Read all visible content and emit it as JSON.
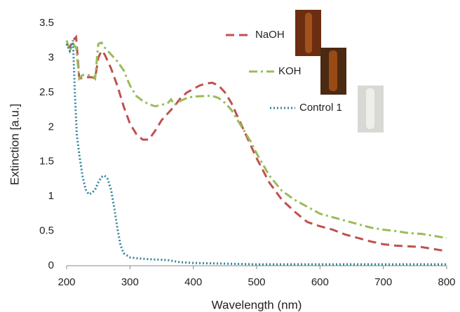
{
  "chart_data": {
    "type": "line",
    "x_label": "Wavelength (nm)",
    "y_label": "Extinction [a.u.]",
    "xlim": [
      200,
      800
    ],
    "xticks": [
      200,
      300,
      400,
      500,
      600,
      700,
      800
    ],
    "ylim": [
      0,
      3.5
    ],
    "yticks": [
      0,
      0.5,
      1,
      1.5,
      2,
      2.5,
      3,
      3.5
    ],
    "series": [
      {
        "name": "NaOH",
        "color": "#c0504d",
        "dash": "dashed",
        "x": [
          200,
          205,
          210,
          215,
          220,
          230,
          240,
          245,
          250,
          255,
          260,
          270,
          280,
          290,
          300,
          310,
          320,
          330,
          340,
          350,
          360,
          370,
          380,
          390,
          400,
          410,
          420,
          430,
          440,
          450,
          460,
          470,
          480,
          490,
          500,
          520,
          540,
          560,
          580,
          600,
          620,
          640,
          660,
          680,
          700,
          720,
          740,
          760,
          780,
          800
        ],
        "values": [
          3.2,
          3.15,
          3.25,
          3.3,
          2.7,
          2.72,
          2.72,
          2.7,
          3.0,
          3.1,
          3.05,
          2.85,
          2.6,
          2.3,
          2.05,
          1.9,
          1.82,
          1.82,
          1.95,
          2.1,
          2.2,
          2.3,
          2.42,
          2.5,
          2.55,
          2.6,
          2.63,
          2.64,
          2.6,
          2.5,
          2.35,
          2.15,
          1.95,
          1.75,
          1.55,
          1.2,
          0.95,
          0.78,
          0.63,
          0.57,
          0.52,
          0.45,
          0.4,
          0.35,
          0.31,
          0.29,
          0.28,
          0.27,
          0.24,
          0.21
        ]
      },
      {
        "name": "KOH",
        "color": "#9bbb59",
        "dash": "dashdot",
        "x": [
          200,
          205,
          210,
          215,
          220,
          225,
          230,
          240,
          245,
          250,
          255,
          260,
          270,
          280,
          290,
          300,
          310,
          320,
          330,
          340,
          350,
          360,
          365,
          370,
          380,
          390,
          400,
          420,
          430,
          440,
          450,
          460,
          470,
          480,
          490,
          500,
          520,
          540,
          560,
          580,
          600,
          620,
          640,
          660,
          680,
          700,
          720,
          740,
          760,
          780,
          800
        ],
        "values": [
          3.25,
          3.1,
          3.2,
          3.15,
          2.7,
          2.75,
          2.75,
          2.75,
          2.7,
          3.2,
          3.22,
          3.15,
          3.05,
          2.95,
          2.82,
          2.6,
          2.45,
          2.38,
          2.33,
          2.3,
          2.32,
          2.35,
          2.4,
          2.32,
          2.38,
          2.42,
          2.44,
          2.45,
          2.45,
          2.42,
          2.35,
          2.25,
          2.1,
          1.95,
          1.8,
          1.62,
          1.3,
          1.08,
          0.95,
          0.85,
          0.75,
          0.7,
          0.65,
          0.6,
          0.55,
          0.52,
          0.5,
          0.47,
          0.46,
          0.43,
          0.4
        ]
      },
      {
        "name": "Control 1",
        "color": "#31859c",
        "dash": "dotted",
        "x": [
          200,
          205,
          210,
          213,
          216,
          220,
          225,
          230,
          235,
          240,
          245,
          250,
          255,
          260,
          265,
          270,
          275,
          280,
          285,
          290,
          300,
          320,
          340,
          360,
          380,
          400,
          450,
          500,
          600,
          700,
          800
        ],
        "values": [
          3.2,
          3.1,
          3.25,
          2.5,
          1.9,
          1.6,
          1.3,
          1.1,
          1.03,
          1.05,
          1.1,
          1.2,
          1.28,
          1.3,
          1.25,
          1.1,
          0.85,
          0.55,
          0.3,
          0.18,
          0.12,
          0.1,
          0.09,
          0.08,
          0.05,
          0.04,
          0.03,
          0.02,
          0.02,
          0.02,
          0.02
        ]
      }
    ]
  }
}
